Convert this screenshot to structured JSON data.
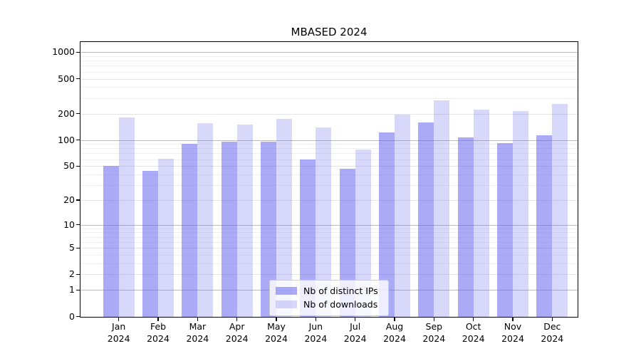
{
  "figure": {
    "background": "#ffffff",
    "title": "MBASED 2024"
  },
  "chart_data": {
    "type": "bar",
    "title": "MBASED 2024",
    "categories": [
      "Jan",
      "Feb",
      "Mar",
      "Apr",
      "May",
      "Jun",
      "Jul",
      "Aug",
      "Sep",
      "Oct",
      "Nov",
      "Dec"
    ],
    "category_year": "2024",
    "series": [
      {
        "name": "Nb of distinct IPs",
        "color": "rgba(100,100,240,0.55)",
        "values": [
          50,
          44,
          90,
          95,
          95,
          60,
          47,
          121,
          158,
          107,
          92,
          113
        ]
      },
      {
        "name": "Nb of downloads",
        "color": "rgba(100,100,240,0.25)",
        "values": [
          182,
          61,
          155,
          150,
          175,
          140,
          78,
          194,
          285,
          220,
          215,
          260
        ]
      }
    ],
    "xlabel": "",
    "ylabel": "",
    "yscale": "log1p",
    "ylim": [
      0,
      1320
    ],
    "y_ticks": [
      0,
      1,
      2,
      5,
      10,
      20,
      50,
      100,
      200,
      500,
      1000
    ],
    "y_minor_gridlines": [
      3,
      4,
      6,
      7,
      8,
      9,
      30,
      40,
      60,
      70,
      80,
      90,
      300,
      400,
      600,
      700,
      800,
      900
    ],
    "grid": {
      "on": true,
      "decade_line_values": [
        1,
        10,
        100,
        1000
      ],
      "decade_line_color": "#bbbbbb",
      "labeled_line_color": "#e4e4e4",
      "minor_line_color": "#f0f0f0"
    },
    "legend": {
      "position": "lower center",
      "background": "rgba(255,255,255,0.8)",
      "border_color": "#cccccc"
    },
    "axis_color": "#000000",
    "text_color": "#000000"
  }
}
